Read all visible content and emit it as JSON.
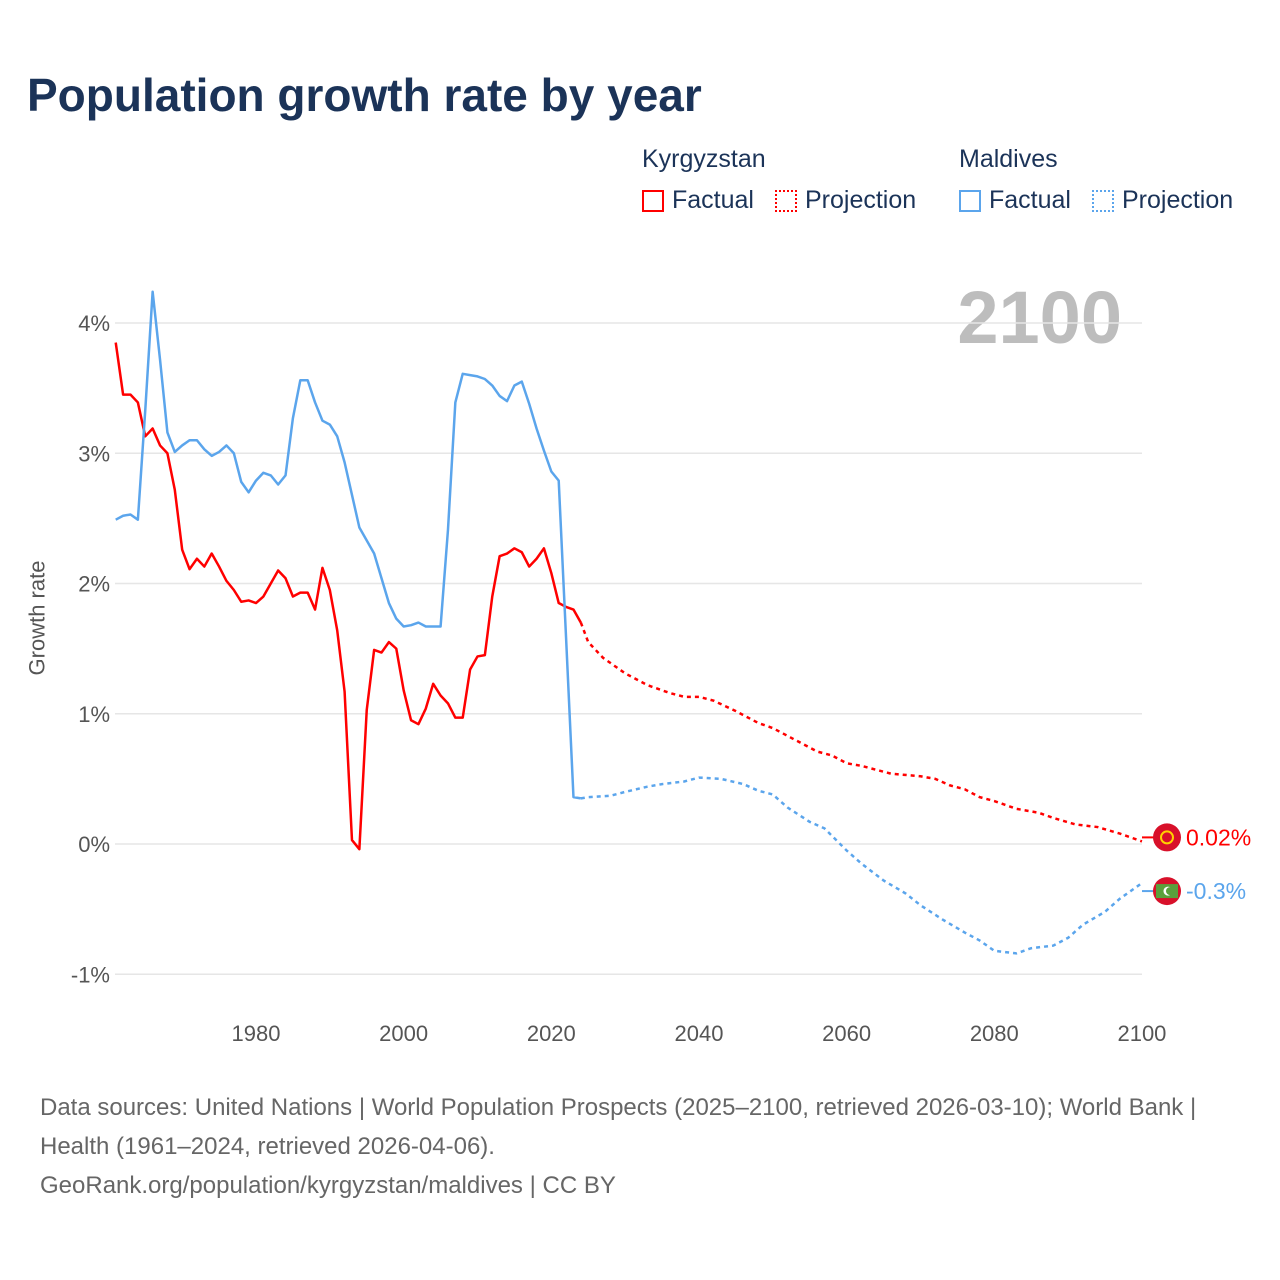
{
  "title": "Population growth rate by year",
  "legend": {
    "groups": [
      {
        "name": "Kyrgyzstan",
        "factual": "Factual",
        "projection": "Projection",
        "color": "#ff0000"
      },
      {
        "name": "Maldives",
        "factual": "Factual",
        "projection": "Projection",
        "color": "#5ba5ec"
      }
    ]
  },
  "year_label": "2100",
  "source": {
    "line1": "Data sources: United Nations | World Population Prospects (2025–2100, retrieved 2026-03-10); World Bank | Health (1961–2024, retrieved 2026-04-06).",
    "line2": "GeoRank.org/population/kyrgyzstan/maldives | CC BY"
  },
  "chart_data": {
    "type": "line",
    "title": "Population growth rate by year",
    "xlabel": "",
    "ylabel": "Growth rate",
    "xlim": [
      1961,
      2100
    ],
    "ylim": [
      -1.1,
      4.4
    ],
    "xticks": [
      1980,
      2000,
      2020,
      2040,
      2060,
      2080,
      2100
    ],
    "yticks": [
      {
        "v": -1,
        "label": "-1%"
      },
      {
        "v": 0,
        "label": "0%"
      },
      {
        "v": 1,
        "label": "1%"
      },
      {
        "v": 2,
        "label": "2%"
      },
      {
        "v": 3,
        "label": "3%"
      },
      {
        "v": 4,
        "label": "4%"
      }
    ],
    "grid": true,
    "series": [
      {
        "name": "Kyrgyzstan",
        "color": "#ff0000",
        "end_label": "0.02%",
        "flag": "kyrgyzstan-flag",
        "factual": {
          "x_start": 1961,
          "values": [
            3.85,
            3.45,
            3.45,
            3.39,
            3.13,
            3.19,
            3.06,
            3.0,
            2.72,
            2.26,
            2.11,
            2.19,
            2.13,
            2.23,
            2.13,
            2.02,
            1.95,
            1.86,
            1.87,
            1.85,
            1.9,
            2.0,
            2.1,
            2.04,
            1.9,
            1.93,
            1.93,
            1.8,
            2.12,
            1.95,
            1.64,
            1.17,
            0.03,
            -0.04,
            1.03,
            1.49,
            1.47,
            1.55,
            1.5,
            1.18,
            0.95,
            0.92,
            1.04,
            1.23,
            1.14,
            1.08,
            0.97,
            0.97,
            1.34,
            1.44,
            1.45,
            1.9,
            2.21,
            2.23,
            2.27,
            2.24,
            2.13,
            2.19,
            2.27,
            2.08,
            1.85,
            1.82,
            1.8,
            1.7
          ]
        },
        "projection": {
          "x": [
            2024,
            2025,
            2027,
            2030,
            2033,
            2036,
            2038,
            2040,
            2042,
            2045,
            2048,
            2050,
            2052,
            2054,
            2056,
            2058,
            2060,
            2062,
            2064,
            2066,
            2070,
            2072,
            2074,
            2076,
            2078,
            2080,
            2083,
            2086,
            2088,
            2091,
            2094,
            2097,
            2100
          ],
          "values": [
            1.7,
            1.55,
            1.43,
            1.31,
            1.22,
            1.16,
            1.13,
            1.13,
            1.1,
            1.02,
            0.93,
            0.89,
            0.83,
            0.77,
            0.71,
            0.68,
            0.62,
            0.6,
            0.57,
            0.54,
            0.52,
            0.5,
            0.45,
            0.42,
            0.36,
            0.33,
            0.27,
            0.24,
            0.2,
            0.15,
            0.13,
            0.08,
            0.02
          ]
        }
      },
      {
        "name": "Maldives",
        "color": "#5ba5ec",
        "end_label": "-0.3%",
        "flag": "maldives-flag",
        "factual": {
          "x_start": 1961,
          "values": [
            2.49,
            2.52,
            2.53,
            2.49,
            3.33,
            4.24,
            3.72,
            3.16,
            3.01,
            3.06,
            3.1,
            3.1,
            3.03,
            2.98,
            3.01,
            3.06,
            3.0,
            2.78,
            2.7,
            2.79,
            2.85,
            2.83,
            2.76,
            2.83,
            3.27,
            3.56,
            3.56,
            3.39,
            3.25,
            3.22,
            3.13,
            2.93,
            2.68,
            2.43,
            2.33,
            2.23,
            2.04,
            1.85,
            1.73,
            1.67,
            1.68,
            1.7,
            1.67,
            1.67,
            1.67,
            2.41,
            3.39,
            3.61,
            3.6,
            3.59,
            3.57,
            3.52,
            3.44,
            3.4,
            3.52,
            3.55,
            3.38,
            3.19,
            3.02,
            2.86,
            2.79,
            1.58,
            0.36,
            0.35
          ]
        },
        "projection": {
          "x": [
            2024,
            2025,
            2028,
            2030,
            2033,
            2035,
            2038,
            2040,
            2043,
            2046,
            2048,
            2050,
            2052,
            2055,
            2057,
            2060,
            2062,
            2065,
            2068,
            2070,
            2073,
            2076,
            2078,
            2080,
            2083,
            2085,
            2088,
            2090,
            2092,
            2095,
            2097,
            2100
          ],
          "values": [
            0.35,
            0.36,
            0.37,
            0.4,
            0.44,
            0.46,
            0.48,
            0.51,
            0.5,
            0.46,
            0.41,
            0.38,
            0.28,
            0.17,
            0.12,
            -0.05,
            -0.15,
            -0.28,
            -0.38,
            -0.47,
            -0.58,
            -0.68,
            -0.74,
            -0.82,
            -0.84,
            -0.8,
            -0.78,
            -0.72,
            -0.62,
            -0.52,
            -0.42,
            -0.3
          ]
        }
      }
    ]
  }
}
